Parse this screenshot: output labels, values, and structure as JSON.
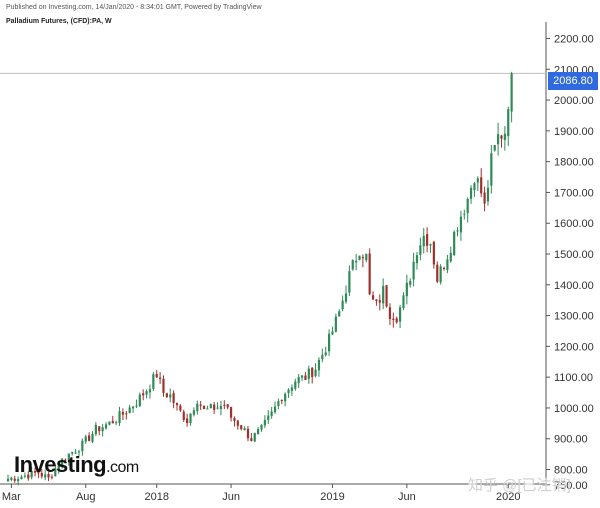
{
  "header": {
    "published": "Published on Investing.com, 14/Jan/2020 - 8:34:01 GMT, Powered by TradingView",
    "symbol": "Palladium Futures, (CFD):PA, W"
  },
  "logo": {
    "main": "Investing",
    "suffix": ".com"
  },
  "watermark": "知乎 @[已注销]",
  "last_price_label": "2086.80",
  "colors": {
    "up": "#2e8b57",
    "down": "#a0302c",
    "price_tag": "#2f6ae0",
    "grid_line": "#bfbfbf"
  },
  "chart_data": {
    "type": "candlestick",
    "title": "Palladium Futures, (CFD):PA, W",
    "xlabel": "",
    "ylabel": "",
    "ylim": [
      740,
      2260
    ],
    "y_ticks": [
      "2200.00",
      "2100.00",
      "2000.00",
      "1900.00",
      "1800.00",
      "1700.00",
      "1600.00",
      "1500.00",
      "1400.00",
      "1300.00",
      "1200.00",
      "1100.00",
      "1000.00",
      "900.00",
      "800.00",
      "750.00"
    ],
    "x_ticks": [
      {
        "label": "Mar",
        "week": 1
      },
      {
        "label": "Aug",
        "week": 23
      },
      {
        "label": "2018",
        "week": 44
      },
      {
        "label": "Jun",
        "week": 66
      },
      {
        "label": "2019",
        "week": 96
      },
      {
        "label": "Jun",
        "week": 118
      },
      {
        "label": "2020",
        "week": 148
      }
    ],
    "last_price": 2086.8,
    "key_points": [
      [
        0,
        770
      ],
      [
        5,
        780
      ],
      [
        9,
        790
      ],
      [
        12,
        770
      ],
      [
        15,
        820
      ],
      [
        18,
        850
      ],
      [
        22,
        880
      ],
      [
        26,
        930
      ],
      [
        30,
        950
      ],
      [
        34,
        980
      ],
      [
        38,
        1020
      ],
      [
        41,
        1060
      ],
      [
        44,
        1110
      ],
      [
        46,
        1050
      ],
      [
        48,
        1040
      ],
      [
        50,
        1000
      ],
      [
        53,
        960
      ],
      [
        56,
        1030
      ],
      [
        58,
        990
      ],
      [
        61,
        1000
      ],
      [
        64,
        1010
      ],
      [
        66,
        970
      ],
      [
        69,
        940
      ],
      [
        72,
        900
      ],
      [
        75,
        930
      ],
      [
        78,
        980
      ],
      [
        81,
        1040
      ],
      [
        85,
        1090
      ],
      [
        88,
        1100
      ],
      [
        91,
        1130
      ],
      [
        95,
        1220
      ],
      [
        98,
        1310
      ],
      [
        101,
        1430
      ],
      [
        104,
        1520
      ],
      [
        106,
        1490
      ],
      [
        107,
        1360
      ],
      [
        109,
        1330
      ],
      [
        111,
        1380
      ],
      [
        113,
        1310
      ],
      [
        115,
        1300
      ],
      [
        117,
        1350
      ],
      [
        119,
        1430
      ],
      [
        121,
        1520
      ],
      [
        123,
        1560
      ],
      [
        125,
        1540
      ],
      [
        127,
        1420
      ],
      [
        129,
        1470
      ],
      [
        131,
        1530
      ],
      [
        133,
        1600
      ],
      [
        136,
        1680
      ],
      [
        138,
        1760
      ],
      [
        140,
        1700
      ],
      [
        141,
        1650
      ],
      [
        143,
        1800
      ],
      [
        145,
        1880
      ],
      [
        147,
        1900
      ],
      [
        148,
        2000
      ],
      [
        149,
        2086.8
      ]
    ]
  }
}
